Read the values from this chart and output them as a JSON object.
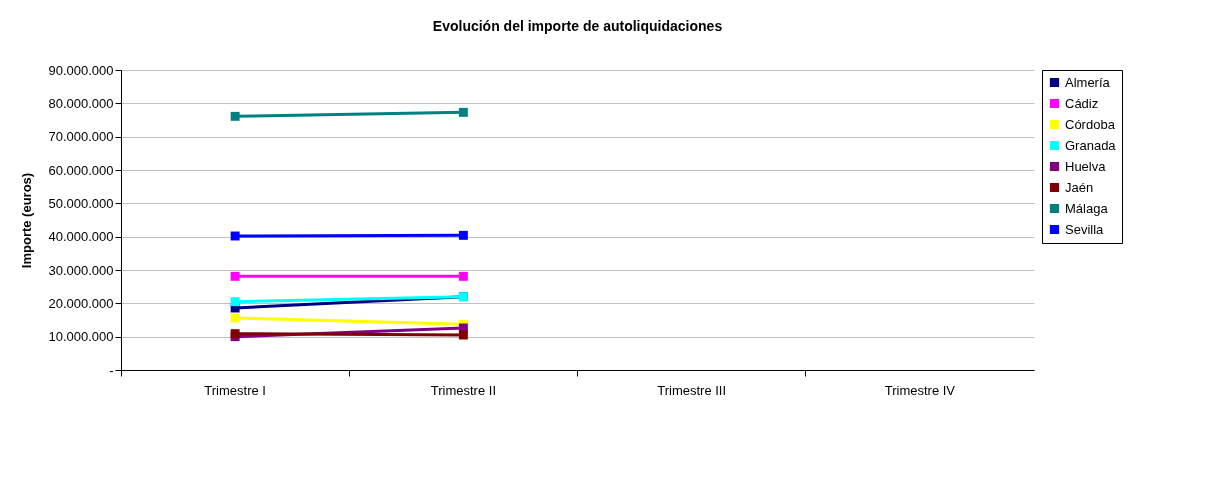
{
  "chart_data": {
    "type": "line",
    "title": "Evolución del importe de autoliquidaciones",
    "ylabel": "Importe (euros)",
    "categories": [
      "Trimestre I",
      "Trimestre II",
      "Trimestre III",
      "Trimestre IV"
    ],
    "ylim": [
      0,
      90000000
    ],
    "yticks": [
      {
        "value": 0,
        "label": "-"
      },
      {
        "value": 10000000,
        "label": "10.000.000"
      },
      {
        "value": 20000000,
        "label": "20.000.000"
      },
      {
        "value": 30000000,
        "label": "30.000.000"
      },
      {
        "value": 40000000,
        "label": "40.000.000"
      },
      {
        "value": 50000000,
        "label": "50.000.000"
      },
      {
        "value": 60000000,
        "label": "60.000.000"
      },
      {
        "value": 70000000,
        "label": "70.000.000"
      },
      {
        "value": 80000000,
        "label": "80.000.000"
      },
      {
        "value": 90000000,
        "label": "90.000.000"
      }
    ],
    "grid": "y",
    "legend": "right",
    "marker": "square",
    "line_style": "solid",
    "series": [
      {
        "name": "Almería",
        "color": "#000080",
        "values": [
          18600000,
          22000000,
          null,
          null
        ]
      },
      {
        "name": "Cádiz",
        "color": "#ff00ff",
        "values": [
          28100000,
          28100000,
          null,
          null
        ]
      },
      {
        "name": "Córdoba",
        "color": "#ffff00",
        "values": [
          15600000,
          13700000,
          null,
          null
        ]
      },
      {
        "name": "Granada",
        "color": "#00ffff",
        "values": [
          20500000,
          22000000,
          null,
          null
        ]
      },
      {
        "name": "Huelva",
        "color": "#800080",
        "values": [
          10000000,
          12600000,
          null,
          null
        ]
      },
      {
        "name": "Jaén",
        "color": "#800000",
        "values": [
          10900000,
          10500000,
          null,
          null
        ]
      },
      {
        "name": "Málaga",
        "color": "#008080",
        "values": [
          76100000,
          77300000,
          null,
          null
        ]
      },
      {
        "name": "Sevilla",
        "color": "#0000ff",
        "values": [
          40200000,
          40400000,
          null,
          null
        ]
      }
    ]
  }
}
